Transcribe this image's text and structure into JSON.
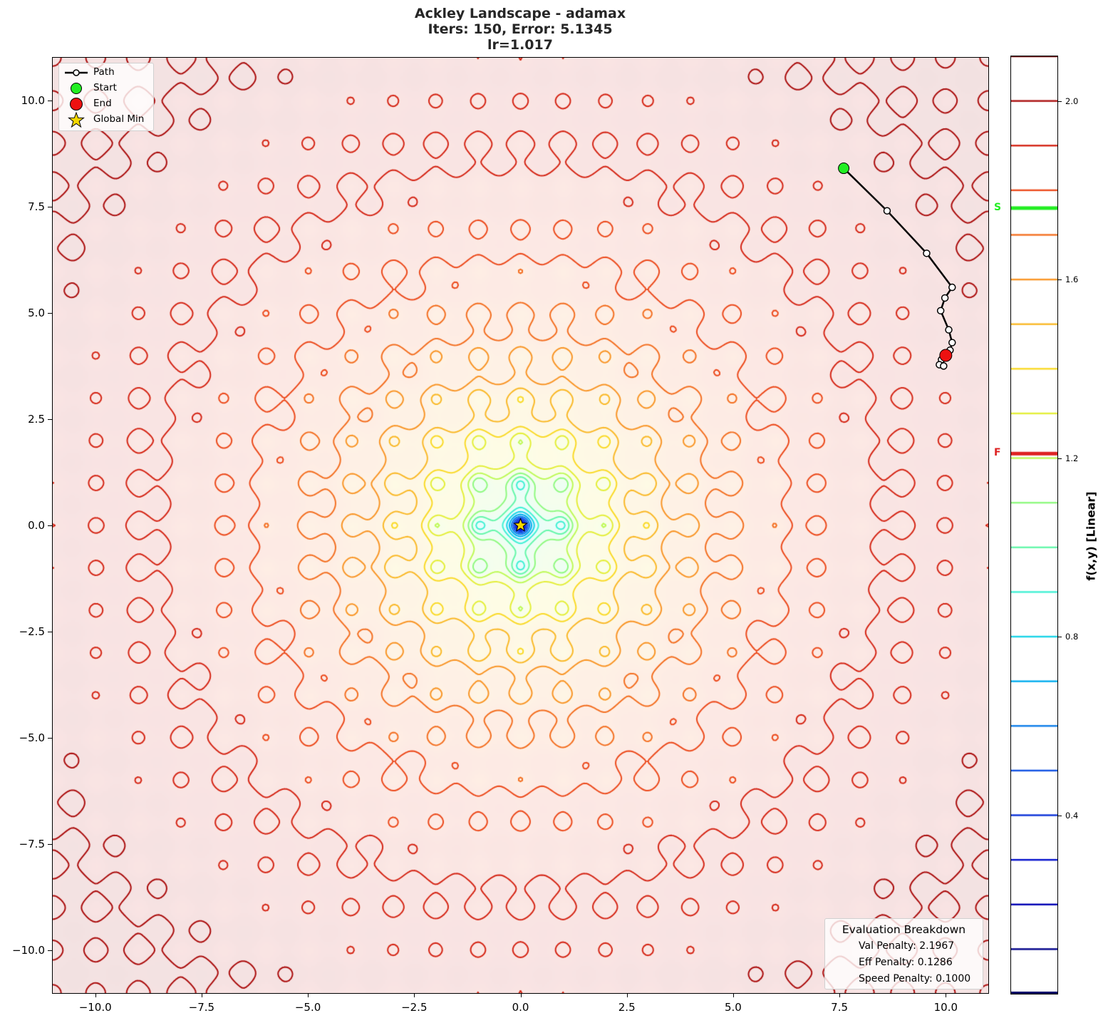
{
  "title": {
    "line1": "Ackley Landscape - adamax",
    "line2": "Iters: 150, Error: 5.1345",
    "line3": "lr=1.017"
  },
  "chart_data": {
    "type": "contour",
    "title": "Ackley Landscape - adamax\nIters: 150, Error: 5.1345\nlr=1.017",
    "function": "ackley",
    "optimizer": "adamax",
    "iterations": 150,
    "error": 5.1345,
    "learning_rate": 1.017,
    "xlim": [
      -11,
      11
    ],
    "ylim": [
      -11,
      11
    ],
    "x_ticks": [
      "-10.0",
      "-7.5",
      "-5.0",
      "-2.5",
      "0.0",
      "2.5",
      "5.0",
      "7.5",
      "10.0"
    ],
    "y_ticks": [
      "10.0",
      "7.5",
      "5.0",
      "2.5",
      "0.0",
      "-2.5",
      "-5.0",
      "-7.5",
      "-10.0"
    ],
    "colorbar": {
      "label": "f(x,y) [Linear]",
      "ticks": [
        "2.0",
        "1.6",
        "1.2",
        "0.8",
        "0.4"
      ],
      "range": [
        0.0,
        2.1
      ],
      "levels": [
        0.1,
        0.2,
        0.3,
        0.4,
        0.5,
        0.6,
        0.7,
        0.8,
        0.9,
        1.0,
        1.1,
        1.2,
        1.3,
        1.4,
        1.5,
        1.6,
        1.7,
        1.8,
        1.9,
        2.0,
        2.1
      ],
      "markers": [
        {
          "label": "S",
          "value": 1.76,
          "color": "#22ee22"
        },
        {
          "label": "F",
          "value": 1.21,
          "color": "#dd2222"
        }
      ]
    },
    "path": {
      "x": [
        7.6,
        8.62,
        9.55,
        10.15,
        9.98,
        9.88,
        10.07,
        10.15,
        10.1,
        10.0,
        9.9,
        9.85,
        9.95
      ],
      "y": [
        8.4,
        7.4,
        6.4,
        5.6,
        5.35,
        5.05,
        4.6,
        4.3,
        4.12,
        4.05,
        3.9,
        3.78,
        3.75
      ]
    },
    "start": {
      "x": 7.6,
      "y": 8.4
    },
    "end": {
      "x": 10.0,
      "y": 4.0
    },
    "global_min": {
      "x": 0.0,
      "y": 0.0
    },
    "legend": [
      "Path",
      "Start",
      "End",
      "Global Min"
    ],
    "legend_position": "upper left",
    "grid": false
  },
  "legend": {
    "items": [
      {
        "label": "Path",
        "icon": "path-line-icon"
      },
      {
        "label": "Start",
        "icon": "green-circle-icon"
      },
      {
        "label": "End",
        "icon": "red-circle-icon"
      },
      {
        "label": "Global Min",
        "icon": "star-icon"
      }
    ]
  },
  "evaluation": {
    "title": "Evaluation Breakdown",
    "lines": [
      "Val Penalty: 2.1967",
      "Eff Penalty: 0.1286",
      "Speed Penalty: 0.1000"
    ]
  },
  "colors": {
    "start": "#22ee22",
    "end": "#ee1111",
    "star": "#f5d800",
    "path": "#000000"
  }
}
